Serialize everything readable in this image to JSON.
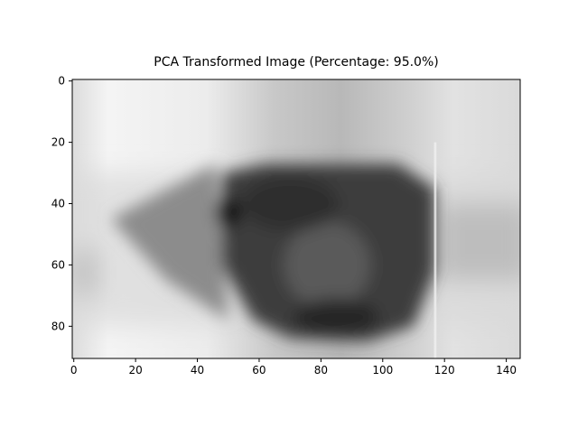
{
  "chart_data": {
    "type": "image",
    "title": "PCA Transformed Image (Percentage: 95.0%)",
    "xlim": [
      -0.5,
      144.5
    ],
    "ylim": [
      90.5,
      -0.5
    ],
    "xticks": [
      0,
      20,
      40,
      60,
      80,
      100,
      120,
      140
    ],
    "yticks": [
      0,
      20,
      40,
      60,
      80
    ]
  }
}
